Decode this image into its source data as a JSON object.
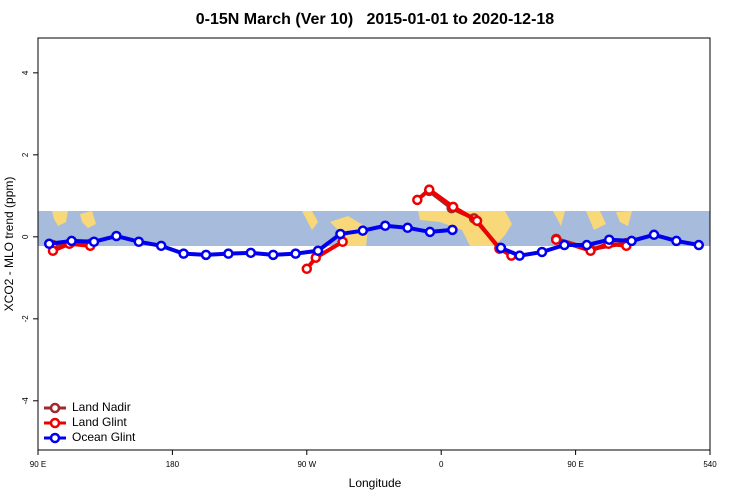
{
  "chart_data": {
    "type": "line",
    "title": "0-15N March (Ver 10)   2015-01-01 to 2020-12-18",
    "x_label": "Longitude",
    "y_label": "XCO2 - MLO trend (ppm)",
    "xlim": [
      90,
      540
    ],
    "ylim": [
      -5.2,
      4.85
    ],
    "xticks": [
      {
        "value": 90,
        "label": "90 E"
      },
      180,
      {
        "value": 270,
        "label": "90 W"
      },
      {
        "value": 360,
        "label": "0"
      },
      {
        "value": 450,
        "label": "90 E"
      },
      540
    ],
    "yticks": [
      -4,
      -2,
      0,
      2,
      4
    ],
    "legend": "bottom-left",
    "series": [
      {
        "name": "Land Nadir",
        "color": "#a0282e",
        "x": [
          100,
          113,
          125,
          null,
          352,
          367,
          382,
          399,
          null,
          437,
          460,
          484
        ],
        "values": [
          -0.2,
          -0.12,
          -0.17,
          null,
          1.12,
          0.7,
          0.45,
          -0.27,
          null,
          -0.05,
          -0.3,
          -0.15
        ]
      },
      {
        "name": "Land Glint",
        "color": "#ee0000",
        "x": [
          100,
          111,
          125,
          null,
          270,
          276,
          294,
          null,
          344,
          352,
          368,
          384,
          399,
          407,
          null,
          437,
          460,
          472,
          484
        ],
        "values": [
          -0.34,
          -0.17,
          -0.22,
          null,
          -0.78,
          -0.51,
          -0.12,
          null,
          0.9,
          1.15,
          0.73,
          0.39,
          -0.29,
          -0.46,
          null,
          -0.07,
          -0.34,
          -0.17,
          -0.22
        ]
      },
      {
        "name": "Ocean Glint",
        "color": "#0000ee",
        "x": [
          97.5,
          112.5,
          127.5,
          142.5,
          157.5,
          172.5,
          187.5,
          202.5,
          217.5,
          232.5,
          247.5,
          262.5,
          277.5,
          292.5,
          307.5,
          322.5,
          337.5,
          352.5,
          367.5,
          null,
          400,
          412.5,
          427.5,
          442.5,
          457.5,
          472.5,
          487.5,
          502.5,
          517.5,
          532.5
        ],
        "values": [
          -0.17,
          -0.1,
          -0.12,
          0.02,
          -0.12,
          -0.22,
          -0.41,
          -0.44,
          -0.41,
          -0.39,
          -0.44,
          -0.41,
          -0.34,
          0.07,
          0.15,
          0.27,
          0.22,
          0.12,
          0.17,
          null,
          -0.27,
          -0.46,
          -0.37,
          -0.2,
          -0.2,
          -0.07,
          -0.1,
          0.05,
          -0.1,
          -0.2
        ]
      }
    ]
  }
}
